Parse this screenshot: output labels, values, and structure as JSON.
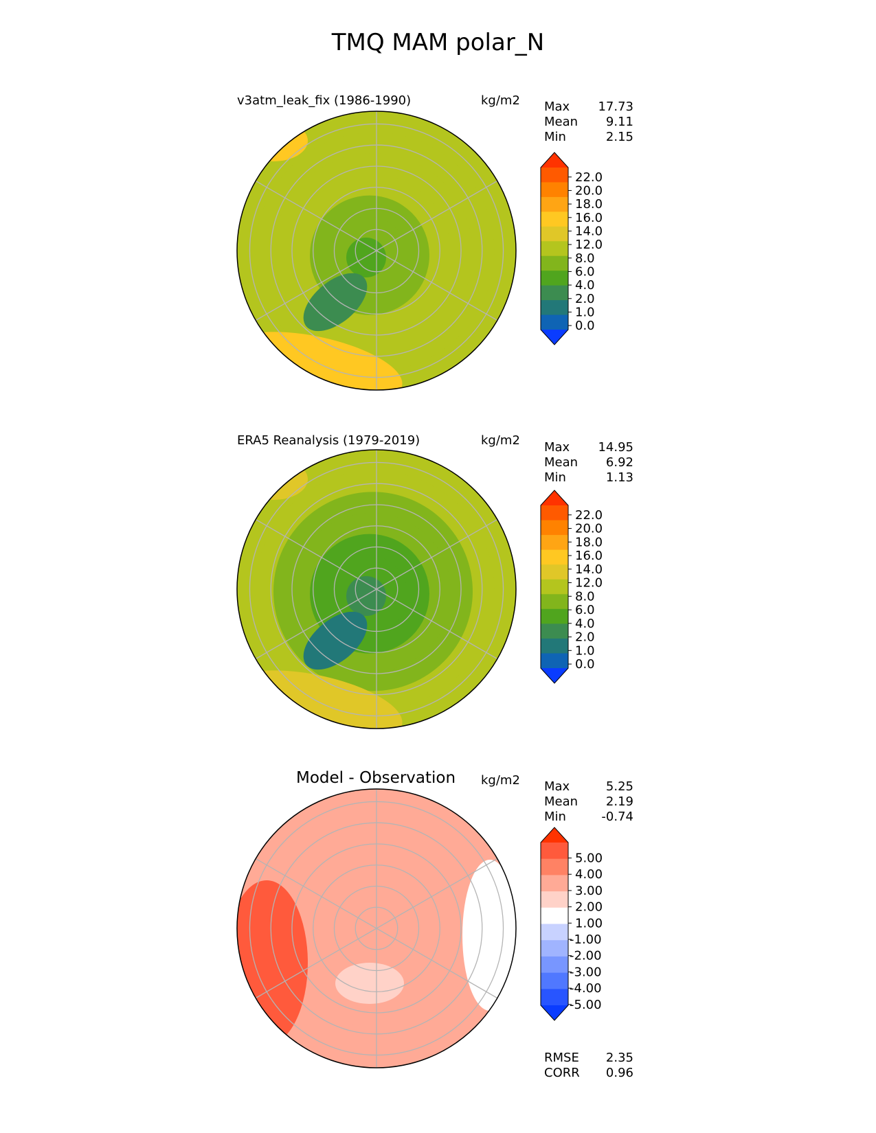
{
  "chart_data": {
    "type": "heatmap",
    "title": "TMQ MAM polar_N",
    "panels": [
      {
        "id": "test",
        "title": "v3atm_leak_fix (1986-1990)",
        "units": "kg/m2",
        "stats": [
          {
            "label": "Max",
            "value": "17.73"
          },
          {
            "label": "Mean",
            "value": "9.11"
          },
          {
            "label": "Min",
            "value": "2.15"
          }
        ],
        "colorbar": {
          "levels": [
            "22.0",
            "20.0",
            "18.0",
            "16.0",
            "14.0",
            "12.0",
            "8.0",
            "6.0",
            "4.0",
            "2.0",
            "1.0",
            "0.0"
          ],
          "colors": [
            "#ff3300",
            "#ff5a00",
            "#ff8200",
            "#ffa514",
            "#ffc822",
            "#e0c728",
            "#b4c51e",
            "#82b51c",
            "#50a51e",
            "#3c8c50",
            "#227878",
            "#0f64b4",
            "#0a3cff"
          ]
        },
        "field_summary": {
          "pole_value": 5,
          "region_low": 3,
          "region_high": 15
        }
      },
      {
        "id": "ref",
        "title": "ERA5 Reanalysis (1979-2019)",
        "units": "kg/m2",
        "stats": [
          {
            "label": "Max",
            "value": "14.95"
          },
          {
            "label": "Mean",
            "value": "6.92"
          },
          {
            "label": "Min",
            "value": "1.13"
          }
        ],
        "colorbar": {
          "levels": [
            "22.0",
            "20.0",
            "18.0",
            "16.0",
            "14.0",
            "12.0",
            "8.0",
            "6.0",
            "4.0",
            "2.0",
            "1.0",
            "0.0"
          ],
          "colors": [
            "#ff3300",
            "#ff5a00",
            "#ff8200",
            "#ffa514",
            "#ffc822",
            "#e0c728",
            "#b4c51e",
            "#82b51c",
            "#50a51e",
            "#3c8c50",
            "#227878",
            "#0f64b4",
            "#0a3cff"
          ]
        },
        "field_summary": {
          "pole_value": 3,
          "region_low": 1.5,
          "region_high": 13
        }
      },
      {
        "id": "diff",
        "title": "Model - Observation",
        "units": "kg/m2",
        "stats": [
          {
            "label": "Max",
            "value": "5.25"
          },
          {
            "label": "Mean",
            "value": "2.19"
          },
          {
            "label": "Min",
            "value": "-0.74"
          }
        ],
        "colorbar": {
          "levels": [
            "5.00",
            "4.00",
            "3.00",
            "2.00",
            "1.00",
            "-1.00",
            "-2.00",
            "-3.00",
            "-4.00",
            "-5.00"
          ],
          "colors": [
            "#ff3300",
            "#ff5a3c",
            "#ff8264",
            "#ffaa96",
            "#ffd2c8",
            "#ffffff",
            "#c8d2ff",
            "#a0b4ff",
            "#7896ff",
            "#5078ff",
            "#2855ff",
            "#0a3cff"
          ]
        },
        "metrics": [
          {
            "label": "RMSE",
            "value": "2.35"
          },
          {
            "label": "CORR",
            "value": "0.96"
          }
        ],
        "field_summary": {
          "pole_value": 2,
          "region_low": 0.5,
          "region_high": 4.5
        }
      }
    ]
  }
}
